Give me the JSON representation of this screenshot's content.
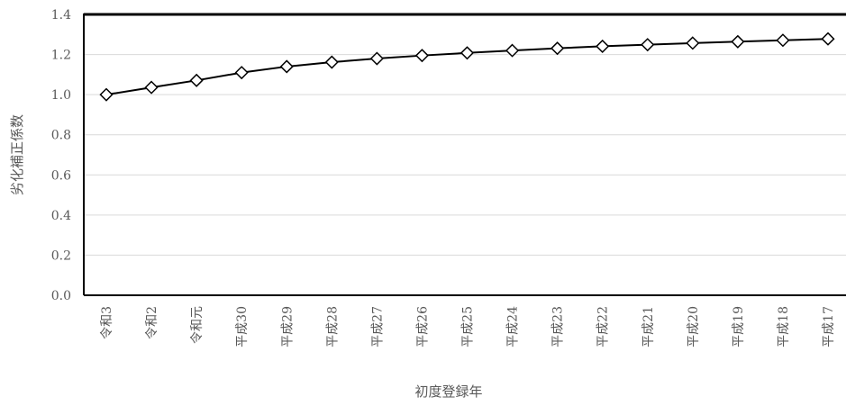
{
  "chart_data": {
    "type": "line",
    "title": "",
    "xlabel": "初度登録年",
    "ylabel": "劣化補正係数",
    "categories": [
      "令和3",
      "令和2",
      "令和元",
      "平成30",
      "平成29",
      "平成28",
      "平成27",
      "平成26",
      "平成25",
      "平成24",
      "平成23",
      "平成22",
      "平成21",
      "平成20",
      "平成19",
      "平成18",
      "平成17"
    ],
    "series": [
      {
        "values": [
          1.0,
          1.036,
          1.071,
          1.11,
          1.14,
          1.162,
          1.18,
          1.195,
          1.208,
          1.22,
          1.231,
          1.241,
          1.249,
          1.257,
          1.264,
          1.271,
          1.278
        ],
        "marker": "diamond"
      }
    ],
    "ylim": [
      0,
      1.4
    ],
    "yticks": [
      "0.0",
      "0.2",
      "0.4",
      "0.6",
      "0.8",
      "1.0",
      "1.2",
      "1.4"
    ],
    "grid": true,
    "legend": "none",
    "colors": {
      "line": "#000000",
      "marker_fill": "#ffffff",
      "grid": "#d9d9d9",
      "text": "#595959"
    }
  }
}
